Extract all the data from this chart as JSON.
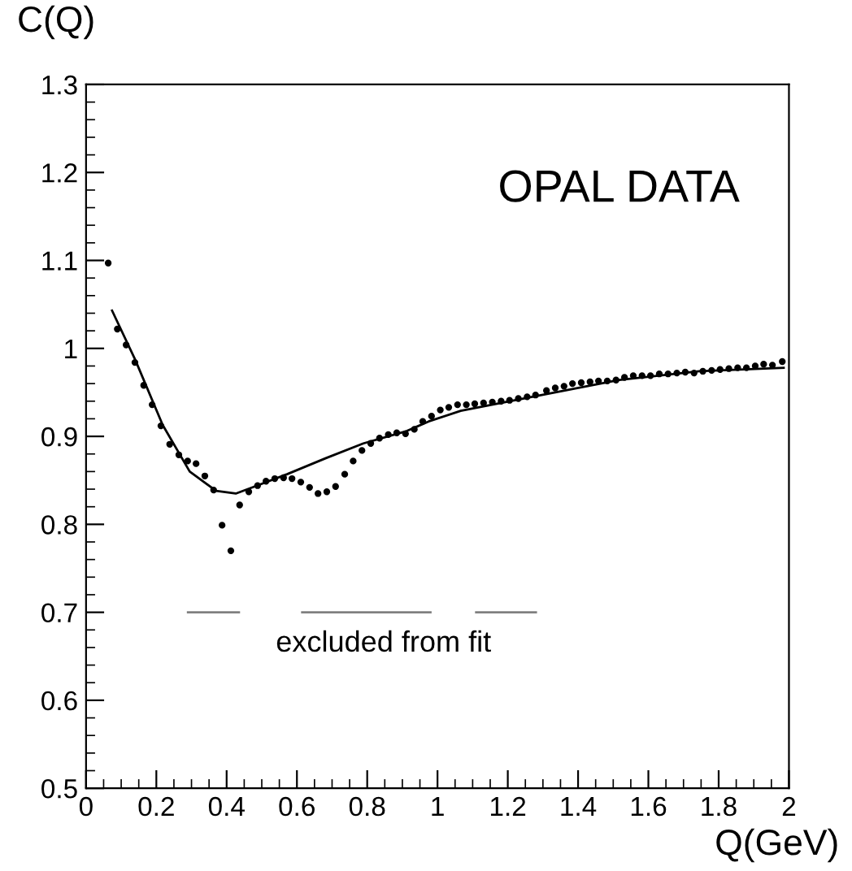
{
  "chart_data": {
    "type": "scatter",
    "xlabel": "Q(GeV)",
    "ylabel": "C(Q)",
    "xlim": [
      0,
      2
    ],
    "ylim": [
      0.5,
      1.3
    ],
    "xticks": [
      0,
      0.2,
      0.4,
      0.6,
      0.8,
      1,
      1.2,
      1.4,
      1.6,
      1.8,
      2
    ],
    "yticks": [
      0.5,
      0.6,
      0.7,
      0.8,
      0.9,
      1,
      1.1,
      1.2,
      1.3
    ],
    "grid": false,
    "legend": false,
    "annotations": [
      "OPAL DATA",
      "excluded from fit"
    ],
    "series": [
      {
        "marker": "circle",
        "color": "#000000",
        "x": [
          0.063,
          0.089,
          0.114,
          0.139,
          0.164,
          0.188,
          0.213,
          0.238,
          0.264,
          0.289,
          0.313,
          0.338,
          0.363,
          0.387,
          0.412,
          0.437,
          0.463,
          0.488,
          0.512,
          0.537,
          0.562,
          0.586,
          0.611,
          0.636,
          0.66,
          0.685,
          0.71,
          0.736,
          0.76,
          0.785,
          0.81,
          0.835,
          0.86,
          0.884,
          0.909,
          0.934,
          0.958,
          0.983,
          1.008,
          1.032,
          1.057,
          1.082,
          1.106,
          1.131,
          1.156,
          1.181,
          1.205,
          1.23,
          1.255,
          1.279,
          1.31,
          1.335,
          1.36,
          1.384,
          1.409,
          1.434,
          1.458,
          1.483,
          1.508,
          1.532,
          1.557,
          1.582,
          1.606,
          1.631,
          1.656,
          1.681,
          1.705,
          1.73,
          1.755,
          1.78,
          1.804,
          1.829,
          1.854,
          1.879,
          1.904,
          1.928,
          1.953,
          1.981
        ],
        "values": [
          1.097,
          1.022,
          1.004,
          0.984,
          0.958,
          0.936,
          0.912,
          0.891,
          0.879,
          0.872,
          0.869,
          0.855,
          0.839,
          0.799,
          0.77,
          0.822,
          0.837,
          0.844,
          0.849,
          0.852,
          0.853,
          0.852,
          0.848,
          0.842,
          0.835,
          0.837,
          0.843,
          0.857,
          0.872,
          0.884,
          0.892,
          0.898,
          0.902,
          0.904,
          0.903,
          0.908,
          0.917,
          0.923,
          0.93,
          0.933,
          0.936,
          0.936,
          0.937,
          0.938,
          0.939,
          0.94,
          0.941,
          0.943,
          0.945,
          0.947,
          0.952,
          0.955,
          0.957,
          0.96,
          0.961,
          0.962,
          0.963,
          0.963,
          0.964,
          0.967,
          0.969,
          0.969,
          0.969,
          0.971,
          0.971,
          0.972,
          0.973,
          0.972,
          0.974,
          0.975,
          0.976,
          0.977,
          0.978,
          0.978,
          0.98,
          0.982,
          0.981,
          0.985
        ]
      },
      {
        "type": "line",
        "marker": "none",
        "color": "#000000",
        "x": [
          0.074,
          0.14,
          0.218,
          0.295,
          0.37,
          0.426,
          0.48,
          0.572,
          0.681,
          0.789,
          0.912,
          0.975,
          1.066,
          1.282,
          1.514,
          1.745,
          1.985
        ],
        "values": [
          1.043,
          0.987,
          0.913,
          0.86,
          0.838,
          0.835,
          0.843,
          0.857,
          0.875,
          0.892,
          0.906,
          0.917,
          0.929,
          0.946,
          0.964,
          0.974,
          0.978
        ]
      },
      {
        "type": "line",
        "marker": "none",
        "color": "#808080",
        "x": [
          0.29,
          0.435
        ],
        "values": [
          0.7,
          0.7
        ]
      },
      {
        "type": "line",
        "marker": "none",
        "color": "#808080",
        "x": [
          0.615,
          0.98
        ],
        "values": [
          0.7,
          0.7
        ]
      },
      {
        "type": "line",
        "marker": "none",
        "color": "#808080",
        "x": [
          1.11,
          1.28
        ],
        "values": [
          0.7,
          0.7
        ]
      }
    ]
  }
}
